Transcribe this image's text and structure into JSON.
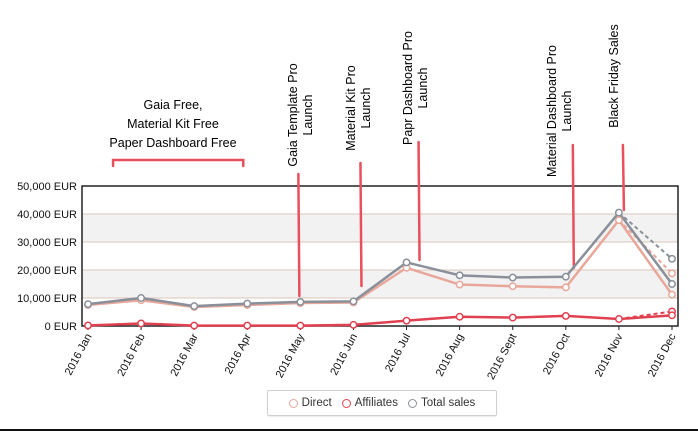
{
  "chart_data": {
    "type": "line",
    "categories": [
      "2016 Jan",
      "2016 Feb",
      "2016 Mar",
      "2016 Apr",
      "2016 May",
      "2016 Jun",
      "2016 Jul",
      "2016 Aug",
      "2016 Sept",
      "2016 Oct",
      "2016 Nov",
      "2016 Dec"
    ],
    "y_tick_labels": [
      "0 EUR",
      "10,000 EUR",
      "20,000 EUR",
      "30,000 EUR",
      "40,000 EUR",
      "50,000 EUR"
    ],
    "ylim": [
      0,
      50000
    ],
    "grid": "horizontal bands",
    "series": [
      {
        "name": "Direct",
        "color": "#e8a79a",
        "values": [
          7500,
          9200,
          6800,
          7500,
          8200,
          8400,
          20800,
          14800,
          14200,
          13800,
          37800,
          11200
        ],
        "dashed_last_segment_value": 18800
      },
      {
        "name": "Affiliates",
        "color": "#e0404f",
        "values": [
          200,
          900,
          150,
          150,
          150,
          400,
          1900,
          3300,
          3000,
          3600,
          2500,
          3800
        ],
        "dashed_last_segment_value": 5200
      },
      {
        "name": "Total sales",
        "color": "#8a9099",
        "values": [
          7800,
          10000,
          7100,
          8000,
          8600,
          8800,
          22700,
          18100,
          17300,
          17600,
          40500,
          15000
        ],
        "dashed_last_segment_value": 24000
      }
    ],
    "legend_position": "bottom-center"
  },
  "annotations": [
    {
      "lines": [
        "Gaia Free,",
        "Material Kit Free",
        "Paper Dashboard Free"
      ],
      "orientation": "horizontal",
      "range_start": "2016 Feb",
      "range_end": "2016 Apr"
    },
    {
      "lines": [
        "Gaia Template Pro",
        "Launch"
      ],
      "orientation": "vertical",
      "month": "2016 May"
    },
    {
      "lines": [
        "Material Kit Pro",
        "Launch"
      ],
      "orientation": "vertical",
      "month": "2016 Jun"
    },
    {
      "lines": [
        "Papr Dashboard Pro",
        "Launch"
      ],
      "orientation": "vertical",
      "month": "2016 Jul"
    },
    {
      "lines": [
        "Material Dashboard Pro",
        "Launch"
      ],
      "orientation": "vertical",
      "month": "2016 Oct"
    },
    {
      "lines": [
        "Black Friday Sales"
      ],
      "orientation": "vertical",
      "month": "2016 Nov"
    }
  ],
  "legend": {
    "items": [
      {
        "label": "Direct",
        "color": "#e8a79a"
      },
      {
        "label": "Affiliates",
        "color": "#e0404f"
      },
      {
        "label": "Total sales",
        "color": "#8a9099"
      }
    ]
  },
  "marker_color": "#e8505e"
}
